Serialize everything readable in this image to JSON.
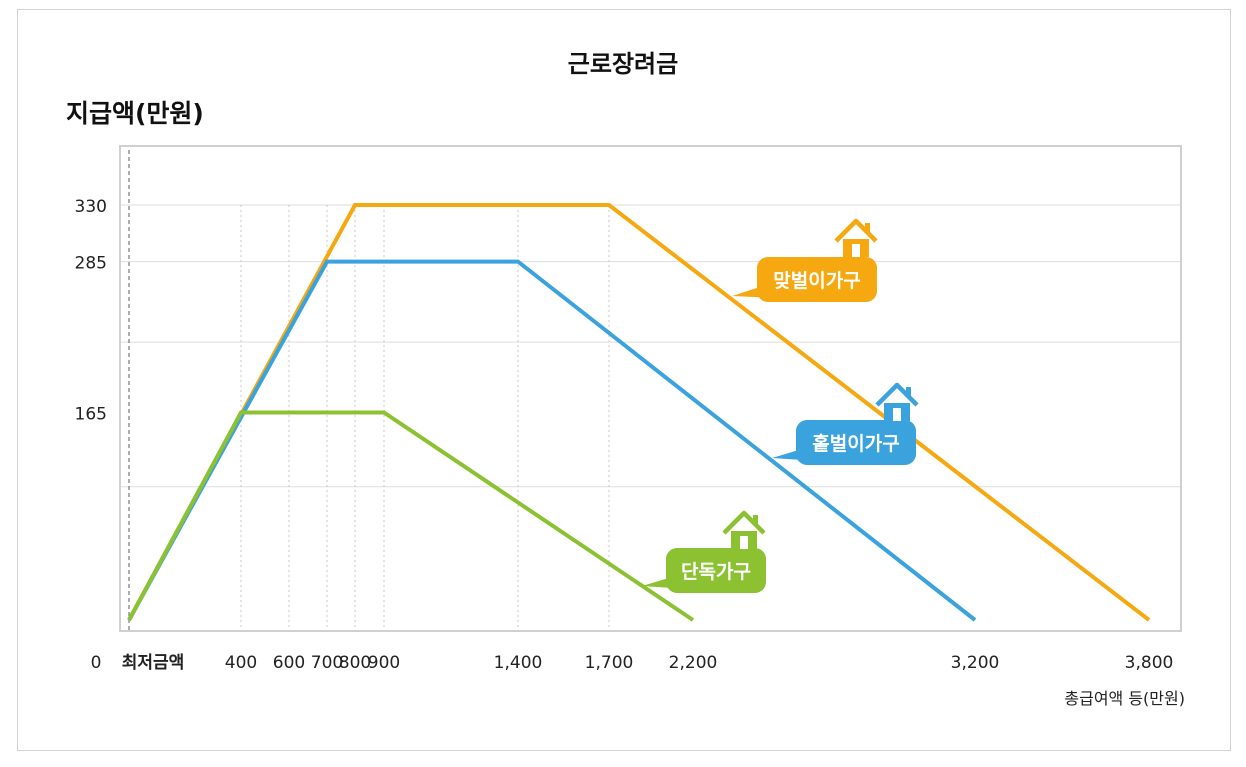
{
  "chart_data": {
    "type": "line",
    "title": "근로장려금",
    "ylabel": "지급액(만원)",
    "xlabel": "총급여액 등(만원)",
    "x_ticks": [
      {
        "value": 0,
        "label": "0"
      },
      {
        "value": 50,
        "label": "최저금액"
      },
      {
        "value": 400,
        "label": "400"
      },
      {
        "value": 600,
        "label": "600"
      },
      {
        "value": 700,
        "label": "700"
      },
      {
        "value": 800,
        "label": "800"
      },
      {
        "value": 900,
        "label": "900"
      },
      {
        "value": 1400,
        "label": "1,400"
      },
      {
        "value": 1700,
        "label": "1,700"
      },
      {
        "value": 2200,
        "label": "2,200"
      },
      {
        "value": 3200,
        "label": "3,200"
      },
      {
        "value": 3800,
        "label": "3,800"
      }
    ],
    "y_ticks": [
      {
        "value": 330,
        "label": "330"
      },
      {
        "value": 285,
        "label": "285"
      },
      {
        "value": 165,
        "label": "165"
      }
    ],
    "y_grid": [
      330,
      285,
      221,
      106
    ],
    "x_guides": [
      400,
      600,
      700,
      800,
      900,
      1400,
      1700
    ],
    "min_line_x": 50,
    "xlim": [
      50,
      3800
    ],
    "ylim": [
      0,
      330
    ],
    "grid": true,
    "series": [
      {
        "name": "맞벌이가구",
        "color": "#f5a80f",
        "points": [
          [
            50,
            0
          ],
          [
            800,
            330
          ],
          [
            1700,
            330
          ],
          [
            3800,
            0
          ]
        ]
      },
      {
        "name": "홑벌이가구",
        "color": "#3aa2dc",
        "points": [
          [
            50,
            0
          ],
          [
            700,
            285
          ],
          [
            1400,
            285
          ],
          [
            3200,
            0
          ]
        ]
      },
      {
        "name": "단독가구",
        "color": "#8cc232",
        "points": [
          [
            50,
            0
          ],
          [
            400,
            165
          ],
          [
            900,
            165
          ],
          [
            2200,
            0
          ]
        ]
      }
    ]
  }
}
